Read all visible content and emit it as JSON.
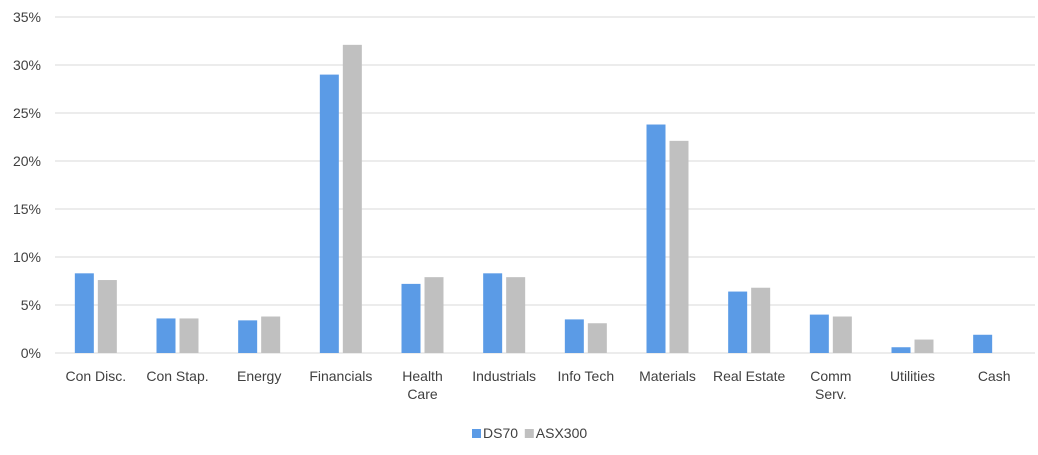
{
  "chart_data": {
    "type": "bar",
    "title": "",
    "xlabel": "",
    "ylabel": "",
    "categories": [
      [
        "Con Disc."
      ],
      [
        "Con Stap."
      ],
      [
        "Energy"
      ],
      [
        "Financials"
      ],
      [
        "Health",
        "Care"
      ],
      [
        "Industrials"
      ],
      [
        "Info Tech"
      ],
      [
        "Materials"
      ],
      [
        "Real Estate"
      ],
      [
        "Comm",
        "Serv."
      ],
      [
        "Utilities"
      ],
      [
        "Cash"
      ]
    ],
    "series": [
      {
        "name": "DS70",
        "color": "#5b9be6",
        "values": [
          8.3,
          3.6,
          3.4,
          29.0,
          7.2,
          8.3,
          3.5,
          23.8,
          6.4,
          4.0,
          0.6,
          1.9
        ]
      },
      {
        "name": "ASX300",
        "color": "#c0c0c0",
        "values": [
          7.6,
          3.6,
          3.8,
          32.1,
          7.9,
          7.9,
          3.1,
          22.1,
          6.8,
          3.8,
          1.4,
          0.0
        ]
      }
    ],
    "ylim": [
      0,
      35
    ],
    "yticks": [
      0,
      5,
      10,
      15,
      20,
      25,
      30,
      35
    ],
    "ytick_labels": [
      "0%",
      "5%",
      "10%",
      "15%",
      "20%",
      "25%",
      "30%",
      "35%"
    ],
    "grid": true,
    "legend_position": "bottom-center"
  }
}
